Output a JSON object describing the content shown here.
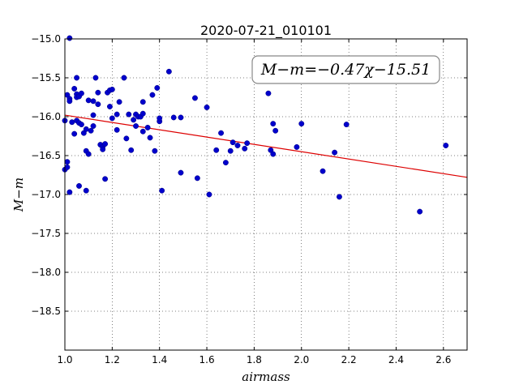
{
  "chart_data": {
    "type": "scatter",
    "title": "2020-07-21_010101",
    "xlabel": "airmass",
    "ylabel": "M−m",
    "xlim": [
      1.0,
      2.7
    ],
    "ylim": [
      -15.0,
      -19.0
    ],
    "xticks": [
      1.0,
      1.2,
      1.4,
      1.6,
      1.8,
      2.0,
      2.2,
      2.4,
      2.6
    ],
    "xtick_labels": [
      "1.0",
      "1.2",
      "1.4",
      "1.6",
      "1.8",
      "2.0",
      "2.2",
      "2.4",
      "2.6"
    ],
    "yticks": [
      -15.0,
      -15.5,
      -16.0,
      -16.5,
      -17.0,
      -17.5,
      -18.0,
      -18.5
    ],
    "ytick_labels": [
      "−15.0",
      "−15.5",
      "−16.0",
      "−16.5",
      "−17.0",
      "−17.5",
      "−18.0",
      "−18.5"
    ],
    "grid": true,
    "annotation": "M−m=−0.47χ−15.51",
    "fit_line": {
      "slope": -0.47,
      "intercept": -15.51,
      "color": "#dd0000"
    },
    "point_color": "#0000cc",
    "points": [
      [
        1.0,
        -16.05
      ],
      [
        1.0,
        -16.68
      ],
      [
        1.01,
        -16.58
      ],
      [
        1.01,
        -15.72
      ],
      [
        1.01,
        -16.65
      ],
      [
        1.02,
        -15.77
      ],
      [
        1.02,
        -15.8
      ],
      [
        1.02,
        -14.99
      ],
      [
        1.02,
        -16.97
      ],
      [
        1.03,
        -16.07
      ],
      [
        1.04,
        -15.64
      ],
      [
        1.04,
        -16.22
      ],
      [
        1.05,
        -15.71
      ],
      [
        1.05,
        -15.75
      ],
      [
        1.05,
        -16.05
      ],
      [
        1.05,
        -15.5
      ],
      [
        1.06,
        -16.08
      ],
      [
        1.06,
        -15.74
      ],
      [
        1.06,
        -16.89
      ],
      [
        1.07,
        -15.7
      ],
      [
        1.07,
        -16.1
      ],
      [
        1.08,
        -16.21
      ],
      [
        1.09,
        -16.16
      ],
      [
        1.09,
        -16.44
      ],
      [
        1.09,
        -16.95
      ],
      [
        1.1,
        -16.48
      ],
      [
        1.1,
        -15.79
      ],
      [
        1.11,
        -16.18
      ],
      [
        1.12,
        -15.98
      ],
      [
        1.12,
        -16.12
      ],
      [
        1.12,
        -15.8
      ],
      [
        1.13,
        -15.5
      ],
      [
        1.14,
        -15.84
      ],
      [
        1.14,
        -15.69
      ],
      [
        1.15,
        -16.36
      ],
      [
        1.16,
        -16.39
      ],
      [
        1.16,
        -16.42
      ],
      [
        1.17,
        -16.35
      ],
      [
        1.17,
        -16.8
      ],
      [
        1.18,
        -15.69
      ],
      [
        1.19,
        -15.66
      ],
      [
        1.19,
        -15.87
      ],
      [
        1.2,
        -15.65
      ],
      [
        1.2,
        -16.02
      ],
      [
        1.22,
        -15.97
      ],
      [
        1.22,
        -16.17
      ],
      [
        1.23,
        -15.81
      ],
      [
        1.25,
        -15.5
      ],
      [
        1.26,
        -16.28
      ],
      [
        1.27,
        -15.97
      ],
      [
        1.28,
        -16.43
      ],
      [
        1.29,
        -16.04
      ],
      [
        1.3,
        -15.97
      ],
      [
        1.3,
        -16.12
      ],
      [
        1.31,
        -16.0
      ],
      [
        1.32,
        -16.0
      ],
      [
        1.33,
        -15.96
      ],
      [
        1.33,
        -15.81
      ],
      [
        1.33,
        -16.19
      ],
      [
        1.35,
        -16.14
      ],
      [
        1.36,
        -16.27
      ],
      [
        1.37,
        -15.72
      ],
      [
        1.38,
        -16.44
      ],
      [
        1.39,
        -15.63
      ],
      [
        1.4,
        -16.06
      ],
      [
        1.4,
        -16.02
      ],
      [
        1.41,
        -16.95
      ],
      [
        1.44,
        -15.42
      ],
      [
        1.46,
        -16.01
      ],
      [
        1.49,
        -16.01
      ],
      [
        1.49,
        -16.72
      ],
      [
        1.55,
        -15.76
      ],
      [
        1.56,
        -16.79
      ],
      [
        1.6,
        -15.88
      ],
      [
        1.61,
        -17.0
      ],
      [
        1.64,
        -16.43
      ],
      [
        1.66,
        -16.21
      ],
      [
        1.68,
        -16.59
      ],
      [
        1.7,
        -16.44
      ],
      [
        1.71,
        -16.33
      ],
      [
        1.73,
        -16.37
      ],
      [
        1.76,
        -16.41
      ],
      [
        1.77,
        -16.34
      ],
      [
        1.86,
        -15.7
      ],
      [
        1.87,
        -16.43
      ],
      [
        1.88,
        -16.48
      ],
      [
        1.88,
        -16.09
      ],
      [
        1.89,
        -16.18
      ],
      [
        1.98,
        -16.39
      ],
      [
        2.0,
        -16.09
      ],
      [
        2.09,
        -16.7
      ],
      [
        2.14,
        -16.46
      ],
      [
        2.16,
        -17.03
      ],
      [
        2.19,
        -16.1
      ],
      [
        2.5,
        -17.22
      ],
      [
        2.61,
        -16.37
      ]
    ]
  }
}
